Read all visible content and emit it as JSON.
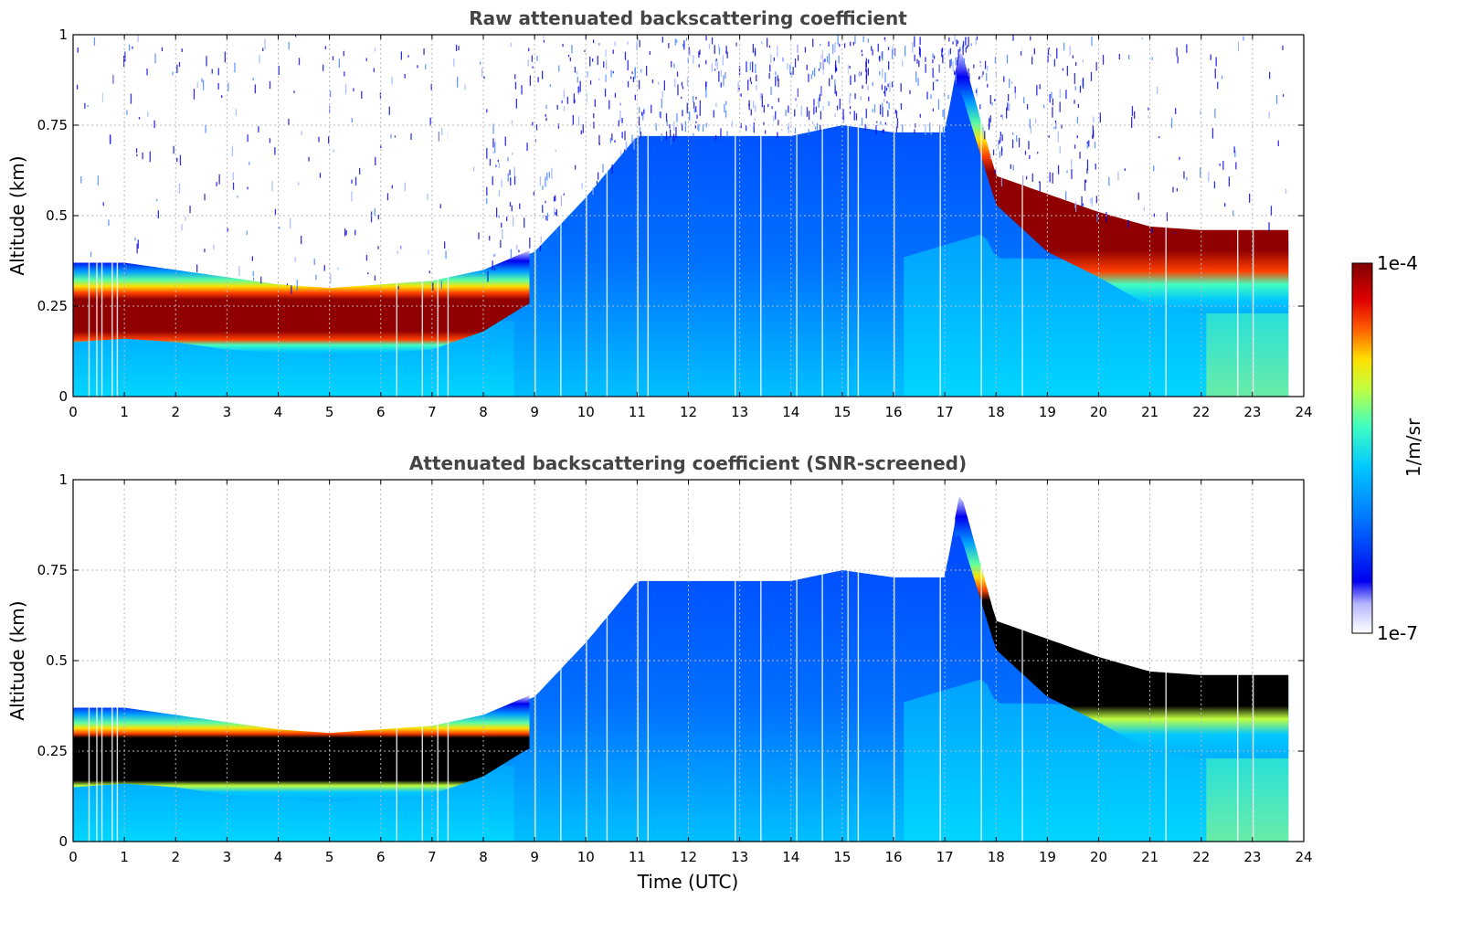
{
  "chart_data": [
    {
      "type": "heatmap",
      "title": "Raw attenuated backscattering coefficient",
      "xlabel": "",
      "ylabel": "Altitude (km)",
      "xlim": [
        0,
        24
      ],
      "ylim": [
        0,
        1
      ],
      "x_ticks": [
        "0",
        "1",
        "2",
        "3",
        "4",
        "5",
        "6",
        "7",
        "8",
        "9",
        "10",
        "11",
        "12",
        "13",
        "14",
        "15",
        "16",
        "17",
        "18",
        "19",
        "20",
        "21",
        "22",
        "23",
        "24"
      ],
      "y_ticks": [
        "0",
        "0.25",
        "0.5",
        "0.75",
        "1"
      ],
      "grid": true,
      "layer_top_km": [
        [
          0.0,
          0.36
        ],
        [
          1,
          0.36
        ],
        [
          2,
          0.34
        ],
        [
          3,
          0.32
        ],
        [
          4,
          0.3
        ],
        [
          5,
          0.29
        ],
        [
          6,
          0.3
        ],
        [
          7,
          0.31
        ],
        [
          8,
          0.34
        ],
        [
          9,
          0.4
        ],
        [
          10,
          0.55
        ],
        [
          11,
          0.72
        ],
        [
          12,
          0.72
        ],
        [
          13,
          0.72
        ],
        [
          14,
          0.72
        ],
        [
          15,
          0.75
        ],
        [
          16,
          0.73
        ],
        [
          17,
          0.73
        ],
        [
          17.3,
          0.96
        ],
        [
          18,
          0.6
        ],
        [
          19,
          0.55
        ],
        [
          20,
          0.5
        ],
        [
          21,
          0.46
        ],
        [
          22,
          0.45
        ],
        [
          23,
          0.45
        ],
        [
          23.7,
          0.45
        ]
      ],
      "cloud_base_km": [
        [
          0.0,
          0.2
        ],
        [
          1,
          0.21
        ],
        [
          2,
          0.2
        ],
        [
          3,
          0.18
        ],
        [
          4,
          0.17
        ],
        [
          5,
          0.16
        ],
        [
          6,
          0.17
        ],
        [
          7,
          0.18
        ],
        [
          8,
          0.23
        ],
        [
          8.8,
          0.3
        ],
        [
          17.3,
          0.9
        ],
        [
          18,
          0.58
        ],
        [
          19,
          0.45
        ],
        [
          20,
          0.38
        ],
        [
          21,
          0.3
        ],
        [
          22,
          0.28
        ],
        [
          23,
          0.28
        ],
        [
          23.7,
          0.28
        ]
      ]
    },
    {
      "type": "heatmap",
      "title": "Attenuated backscattering coefficient (SNR-screened)",
      "xlabel": "Time (UTC)",
      "ylabel": "Altitude (km)",
      "xlim": [
        0,
        24
      ],
      "ylim": [
        0,
        1
      ],
      "x_ticks": [
        "0",
        "1",
        "2",
        "3",
        "4",
        "5",
        "6",
        "7",
        "8",
        "9",
        "10",
        "11",
        "12",
        "13",
        "14",
        "15",
        "16",
        "17",
        "18",
        "19",
        "20",
        "21",
        "22",
        "23",
        "24"
      ],
      "y_ticks": [
        "0",
        "0.25",
        "0.5",
        "0.75",
        "1"
      ],
      "grid": true
    }
  ],
  "colorbar": {
    "label": "1/m/sr",
    "max_label": "1e-4",
    "min_label": "1e-7",
    "scale": "log",
    "range": [
      1e-07,
      0.0001
    ],
    "colors": [
      "#e6e6ff",
      "#0000f0",
      "#0070ff",
      "#00c8ff",
      "#40ffc0",
      "#c0ff40",
      "#ffe000",
      "#ff6000",
      "#e00000",
      "#800000"
    ]
  }
}
